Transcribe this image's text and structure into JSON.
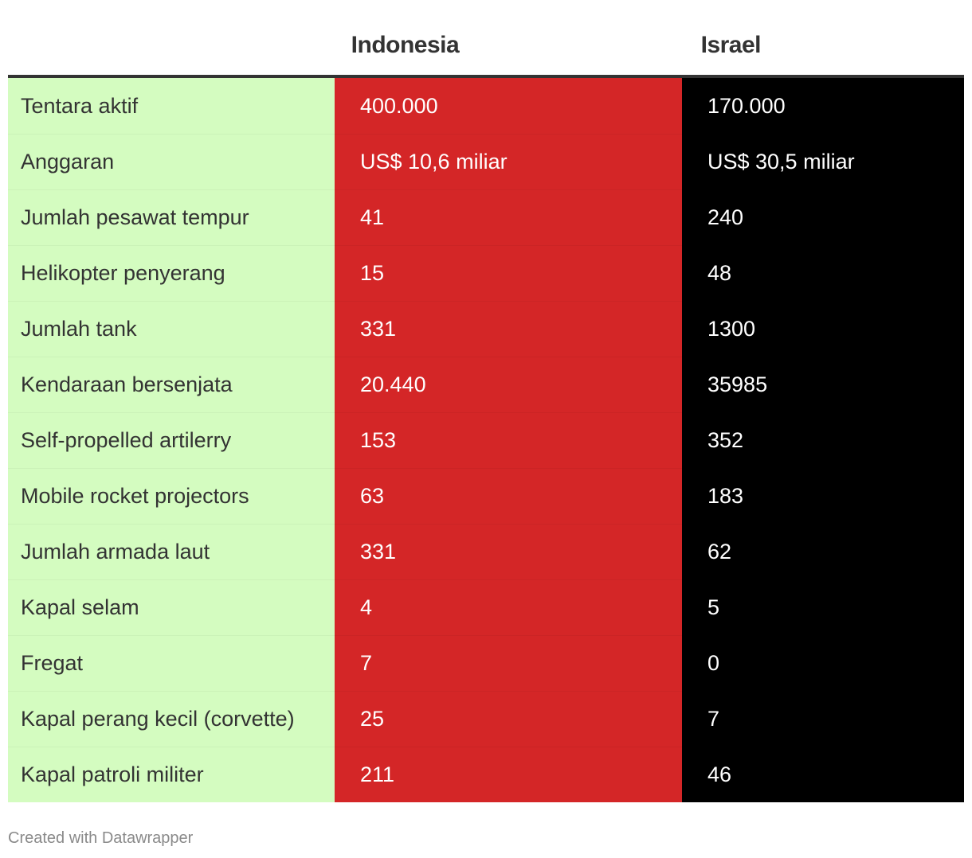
{
  "chart_data": {
    "type": "table",
    "columns": [
      "",
      "Indonesia",
      "Israel"
    ],
    "column_colors": [
      "#d4fcc0",
      "#d42627",
      "#000000"
    ],
    "rows": [
      {
        "label": "Tentara aktif",
        "values": [
          "400.000",
          "170.000"
        ]
      },
      {
        "label": "Anggaran",
        "values": [
          "US$ 10,6 miliar",
          "US$ 30,5 miliar"
        ]
      },
      {
        "label": "Jumlah pesawat tempur",
        "values": [
          "41",
          "240"
        ]
      },
      {
        "label": "Helikopter penyerang",
        "values": [
          "15",
          "48"
        ]
      },
      {
        "label": "Jumlah tank",
        "values": [
          "331",
          "1300"
        ]
      },
      {
        "label": "Kendaraan bersenjata",
        "values": [
          "20.440",
          "35985"
        ]
      },
      {
        "label": "Self-propelled artilerry",
        "values": [
          "153",
          "352"
        ]
      },
      {
        "label": "Mobile rocket projectors",
        "values": [
          "63",
          "183"
        ]
      },
      {
        "label": "Jumlah armada laut",
        "values": [
          "331",
          "62"
        ]
      },
      {
        "label": "Kapal selam",
        "values": [
          "4",
          "5"
        ]
      },
      {
        "label": "Fregat",
        "values": [
          "7",
          "0"
        ]
      },
      {
        "label": "Kapal perang kecil (corvette)",
        "values": [
          "25",
          "7"
        ]
      },
      {
        "label": "Kapal patroli militer",
        "values": [
          "211",
          "46"
        ]
      }
    ]
  },
  "footer": {
    "credit": "Created with Datawrapper"
  }
}
